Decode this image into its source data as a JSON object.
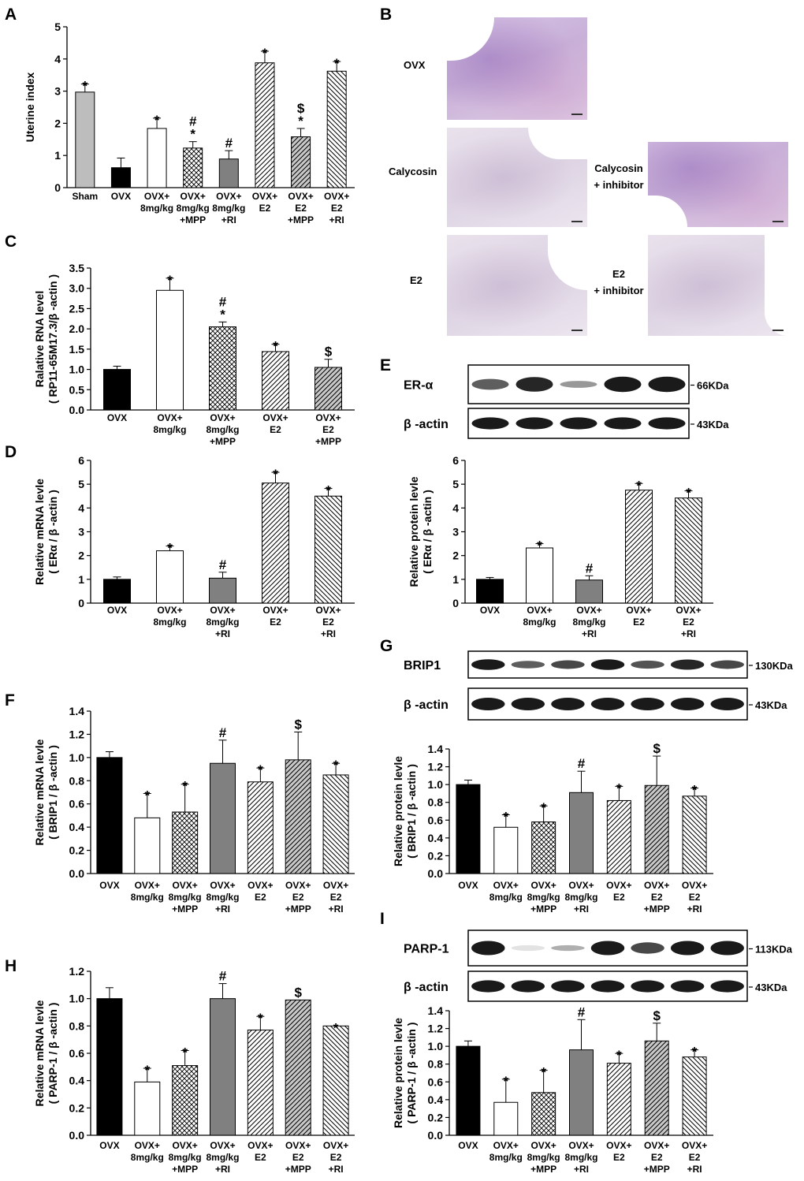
{
  "panel_letters": {
    "A": "A",
    "B": "B",
    "C": "C",
    "D": "D",
    "E": "E",
    "F": "F",
    "G": "G",
    "H": "H",
    "I": "I"
  },
  "colors": {
    "sham": "#bdbdbd",
    "ovx": "#000000",
    "calycosin": "#ffffff",
    "gray": "#808080",
    "hatch": "#ffffff",
    "grayhatch": "#c8c8c8",
    "blot": "#1a1a1a"
  },
  "histology": {
    "labels": {
      "ovx": "OVX",
      "calycosin": "Calycosin",
      "calycosin_inhibitor": "Calycosin\n+ inhibitor",
      "e2": "E2",
      "e2_inhibitor": "E2\n+ inhibitor"
    }
  },
  "western_blots": {
    "E": {
      "protein": "ER-α",
      "protein_kda": "66KDa",
      "control": "β -actin",
      "control_kda": "43KDa",
      "lanes": 5
    },
    "G": {
      "protein": "BRIP1",
      "protein_kda": "130KDa",
      "control": "β -actin",
      "control_kda": "43KDa",
      "lanes": 7
    },
    "I": {
      "protein": "PARP-1",
      "protein_kda": "113KDa",
      "control": "β -actin",
      "control_kda": "43KDa",
      "lanes": 7
    }
  },
  "chart_data": [
    {
      "id": "A",
      "type": "bar",
      "ylabel": "Uterine index",
      "ylim": [
        0,
        5
      ],
      "yticks": [
        0,
        1,
        2,
        3,
        4,
        5
      ],
      "decimals": 0,
      "categories": [
        "Sham",
        "OVX",
        "OVX+\n8mg/kg",
        "OVX+\n8mg/kg\n+MPP",
        "OVX+\n8mg/kg\n+RI",
        "OVX+\nE2",
        "OVX+\nE2\n+MPP",
        "OVX+\nE2\n+RI"
      ],
      "values": [
        2.97,
        0.62,
        1.84,
        1.23,
        0.89,
        3.88,
        1.58,
        3.62
      ],
      "errors": [
        0.25,
        0.3,
        0.32,
        0.2,
        0.26,
        0.36,
        0.26,
        0.3
      ],
      "fills": [
        "sham",
        "ovx",
        "calycosin",
        "crosshatch",
        "gray",
        "diag",
        "graydiag",
        "backdiag"
      ],
      "annotations": [
        "*",
        "",
        "*",
        "#\n*",
        "#",
        "*",
        "$\n*",
        "*"
      ]
    },
    {
      "id": "C",
      "type": "bar",
      "ylabel": "Ralative RNA level\n( RP11-65M17.3/β -actin )",
      "ylim": [
        0,
        3.5
      ],
      "yticks": [
        0,
        0.5,
        1,
        1.5,
        2,
        2.5,
        3,
        3.5
      ],
      "decimals": 1,
      "categories": [
        "OVX",
        "OVX+\n8mg/kg",
        "OVX+\n8mg/kg\n+MPP",
        "OVX+\nE2",
        "OVX+\nE2\n+MPP"
      ],
      "values": [
        1.0,
        2.95,
        2.05,
        1.44,
        1.05
      ],
      "errors": [
        0.08,
        0.3,
        0.12,
        0.18,
        0.2
      ],
      "fills": [
        "ovx",
        "calycosin",
        "crosshatch",
        "diag",
        "graydiag"
      ],
      "annotations": [
        "",
        "*",
        "#\n*",
        "*",
        "$"
      ]
    },
    {
      "id": "D",
      "type": "bar",
      "ylabel": "Relative mRNA levle\n( ERα / β -actin )",
      "ylim": [
        0,
        6
      ],
      "yticks": [
        0,
        1,
        2,
        3,
        4,
        5,
        6
      ],
      "decimals": 0,
      "categories": [
        "OVX",
        "OVX+\n8mg/kg",
        "OVX+\n8mg/kg\n+RI",
        "OVX+\nE2",
        "OVX+\nE2\n+RI"
      ],
      "values": [
        1.0,
        2.2,
        1.05,
        5.05,
        4.5
      ],
      "errors": [
        0.1,
        0.2,
        0.25,
        0.45,
        0.32
      ],
      "fills": [
        "ovx",
        "calycosin",
        "gray",
        "diag",
        "backdiag"
      ],
      "annotations": [
        "",
        "*",
        "#",
        "*",
        "*"
      ]
    },
    {
      "id": "E",
      "type": "bar",
      "ylabel": "Relative protein levle\n( ERα / β -actin )",
      "ylim": [
        0,
        6
      ],
      "yticks": [
        0,
        1,
        2,
        3,
        4,
        5,
        6
      ],
      "decimals": 0,
      "categories": [
        "OVX",
        "OVX+\n8mg/kg",
        "OVX+\n8mg/kg\n+RI",
        "OVX+\nE2",
        "OVX+\nE2\n+RI"
      ],
      "values": [
        1.0,
        2.32,
        0.97,
        4.75,
        4.42
      ],
      "errors": [
        0.08,
        0.18,
        0.18,
        0.28,
        0.3
      ],
      "fills": [
        "ovx",
        "calycosin",
        "gray",
        "diag",
        "backdiag"
      ],
      "annotations": [
        "",
        "*",
        "#",
        "*",
        "*"
      ]
    },
    {
      "id": "F",
      "type": "bar",
      "ylabel": "Relative mRNA levle\n( BRIP1 / β -actin )",
      "ylim": [
        0,
        1.4
      ],
      "yticks": [
        0,
        0.2,
        0.4,
        0.6,
        0.8,
        1.0,
        1.2,
        1.4
      ],
      "decimals": 1,
      "categories": [
        "OVX",
        "OVX+\n8mg/kg",
        "OVX+\n8mg/kg\n+MPP",
        "OVX+\n8mg/kg\n+RI",
        "OVX+\nE2",
        "OVX+\nE2\n+MPP",
        "OVX+\nE2\n+RI"
      ],
      "values": [
        1.0,
        0.48,
        0.53,
        0.95,
        0.79,
        0.98,
        0.85
      ],
      "errors": [
        0.05,
        0.21,
        0.24,
        0.2,
        0.12,
        0.24,
        0.1
      ],
      "fills": [
        "ovx",
        "calycosin",
        "crosshatch",
        "gray",
        "diag",
        "graydiag",
        "backdiag"
      ],
      "annotations": [
        "",
        "*",
        "*",
        "#",
        "*",
        "$",
        "*"
      ]
    },
    {
      "id": "G",
      "type": "bar",
      "ylabel": "Relative protein levle\n( BRIP1 / β -actin )",
      "ylim": [
        0,
        1.4
      ],
      "yticks": [
        0,
        0.2,
        0.4,
        0.6,
        0.8,
        1.0,
        1.2,
        1.4
      ],
      "decimals": 1,
      "categories": [
        "OVX",
        "OVX+\n8mg/kg",
        "OVX+\n8mg/kg\n+MPP",
        "OVX+\n8mg/kg\n+RI",
        "OVX+\nE2",
        "OVX+\nE2\n+MPP",
        "OVX+\nE2\n+RI"
      ],
      "values": [
        1.0,
        0.52,
        0.58,
        0.91,
        0.82,
        0.99,
        0.87
      ],
      "errors": [
        0.05,
        0.14,
        0.18,
        0.24,
        0.16,
        0.33,
        0.09
      ],
      "fills": [
        "ovx",
        "calycosin",
        "crosshatch",
        "gray",
        "diag",
        "graydiag",
        "backdiag"
      ],
      "annotations": [
        "",
        "*",
        "*",
        "#",
        "*",
        "$",
        "*"
      ]
    },
    {
      "id": "H",
      "type": "bar",
      "ylabel": "Relative mRNA levle\n( PARP-1 / β -actin )",
      "ylim": [
        0,
        1.2
      ],
      "yticks": [
        0,
        0.2,
        0.4,
        0.6,
        0.8,
        1.0,
        1.2
      ],
      "decimals": 1,
      "categories": [
        "OVX",
        "OVX+\n8mg/kg",
        "OVX+\n8mg/kg\n+MPP",
        "OVX+\n8mg/kg\n+RI",
        "OVX+\nE2",
        "OVX+\nE2\n+MPP",
        "OVX+\nE2\n+RI"
      ],
      "values": [
        1.0,
        0.39,
        0.51,
        1.0,
        0.77,
        0.99,
        0.8
      ],
      "errors": [
        0.08,
        0.1,
        0.11,
        0.11,
        0.1,
        0.0,
        0.0
      ],
      "fills": [
        "ovx",
        "calycosin",
        "crosshatch",
        "gray",
        "diag",
        "graydiag",
        "backdiag"
      ],
      "annotations": [
        "",
        "*",
        "*",
        "#",
        "*",
        "$",
        "*"
      ]
    },
    {
      "id": "I",
      "type": "bar",
      "ylabel": "Relative protein levle\n( PARP-1 / β -actin )",
      "ylim": [
        0,
        1.4
      ],
      "yticks": [
        0,
        0.2,
        0.4,
        0.6,
        0.8,
        1.0,
        1.2,
        1.4
      ],
      "decimals": 1,
      "categories": [
        "OVX",
        "OVX+\n8mg/kg",
        "OVX+\n8mg/kg\n+MPP",
        "OVX+\n8mg/kg\n+RI",
        "OVX+\nE2",
        "OVX+\nE2\n+MPP",
        "OVX+\nE2\n+RI"
      ],
      "values": [
        1.0,
        0.37,
        0.48,
        0.96,
        0.81,
        1.06,
        0.88
      ],
      "errors": [
        0.06,
        0.26,
        0.25,
        0.34,
        0.11,
        0.2,
        0.08
      ],
      "fills": [
        "ovx",
        "calycosin",
        "crosshatch",
        "gray",
        "diag",
        "graydiag",
        "backdiag"
      ],
      "annotations": [
        "",
        "*",
        "*",
        "#",
        "*",
        "$",
        "*"
      ]
    }
  ]
}
